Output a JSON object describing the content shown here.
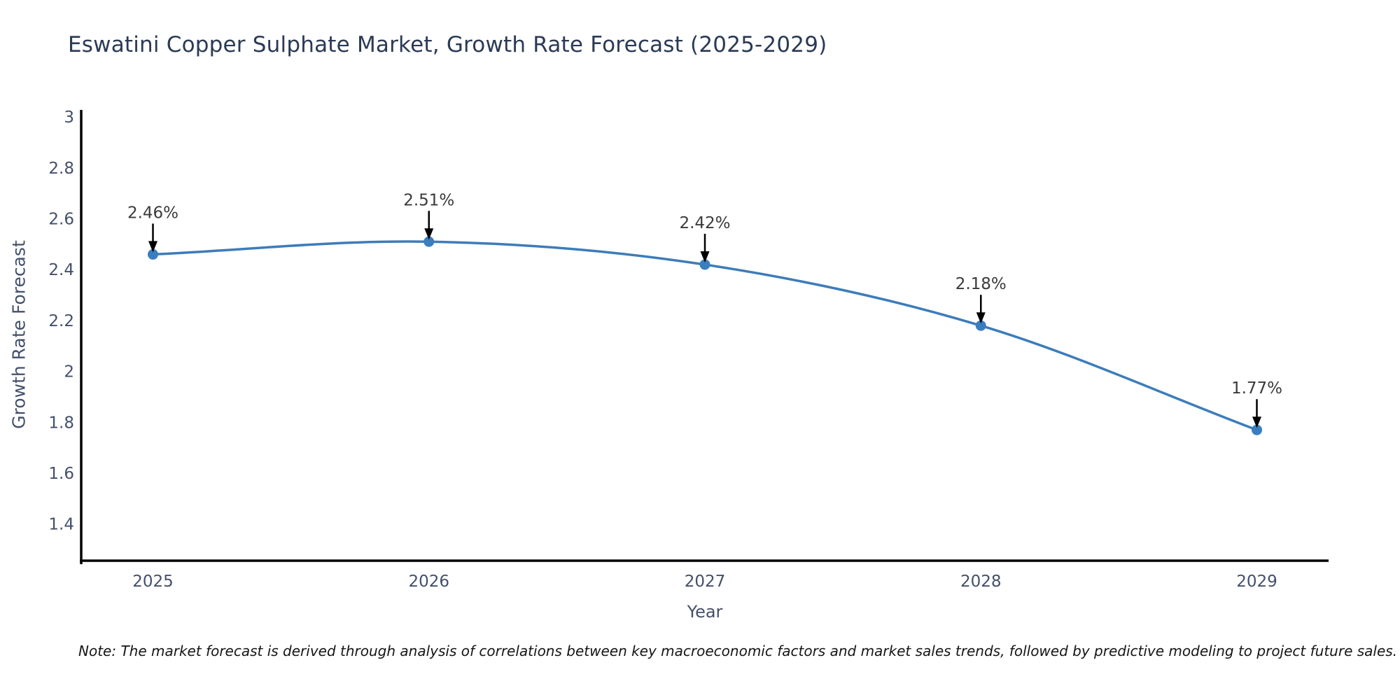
{
  "chart": {
    "title": "Eswatini Copper Sulphate Market, Growth Rate Forecast (2025-2029)"
  },
  "chart_data": {
    "type": "line",
    "title": "Eswatini Copper Sulphate Market, Growth Rate Forecast (2025-2029)",
    "xlabel": "Year",
    "ylabel": "Growth Rate Forecast",
    "x": [
      2025,
      2026,
      2027,
      2028,
      2029
    ],
    "x_tick_labels": [
      "2025",
      "2026",
      "2027",
      "2028",
      "2029"
    ],
    "values": [
      2.46,
      2.51,
      2.42,
      2.18,
      1.77
    ],
    "point_labels": [
      "2.46%",
      "2.51%",
      "2.42%",
      "2.18%",
      "1.77%"
    ],
    "y_ticks": [
      1.4,
      1.6,
      1.8,
      2,
      2.2,
      2.4,
      2.6,
      2.8,
      3
    ],
    "y_tick_labels": [
      "1.4",
      "1.6",
      "1.8",
      "2",
      "2.2",
      "2.4",
      "2.6",
      "2.8",
      "3"
    ],
    "xlim": [
      2024.74,
      2029.26
    ],
    "ylim": [
      1.256,
      3.028
    ],
    "grid": false,
    "legend": "none",
    "line_color": "#3d7cba",
    "marker_color": "#3a7ebf",
    "axis_line_color": "#000000",
    "tick_label_color": "#44506b",
    "annotation_color": "#3a3a3a",
    "arrow_color": "#000000",
    "note": "Note: The market forecast is derived through analysis of correlations between key macroeconomic factors and market sales trends, followed by predictive modeling to project future sales."
  }
}
